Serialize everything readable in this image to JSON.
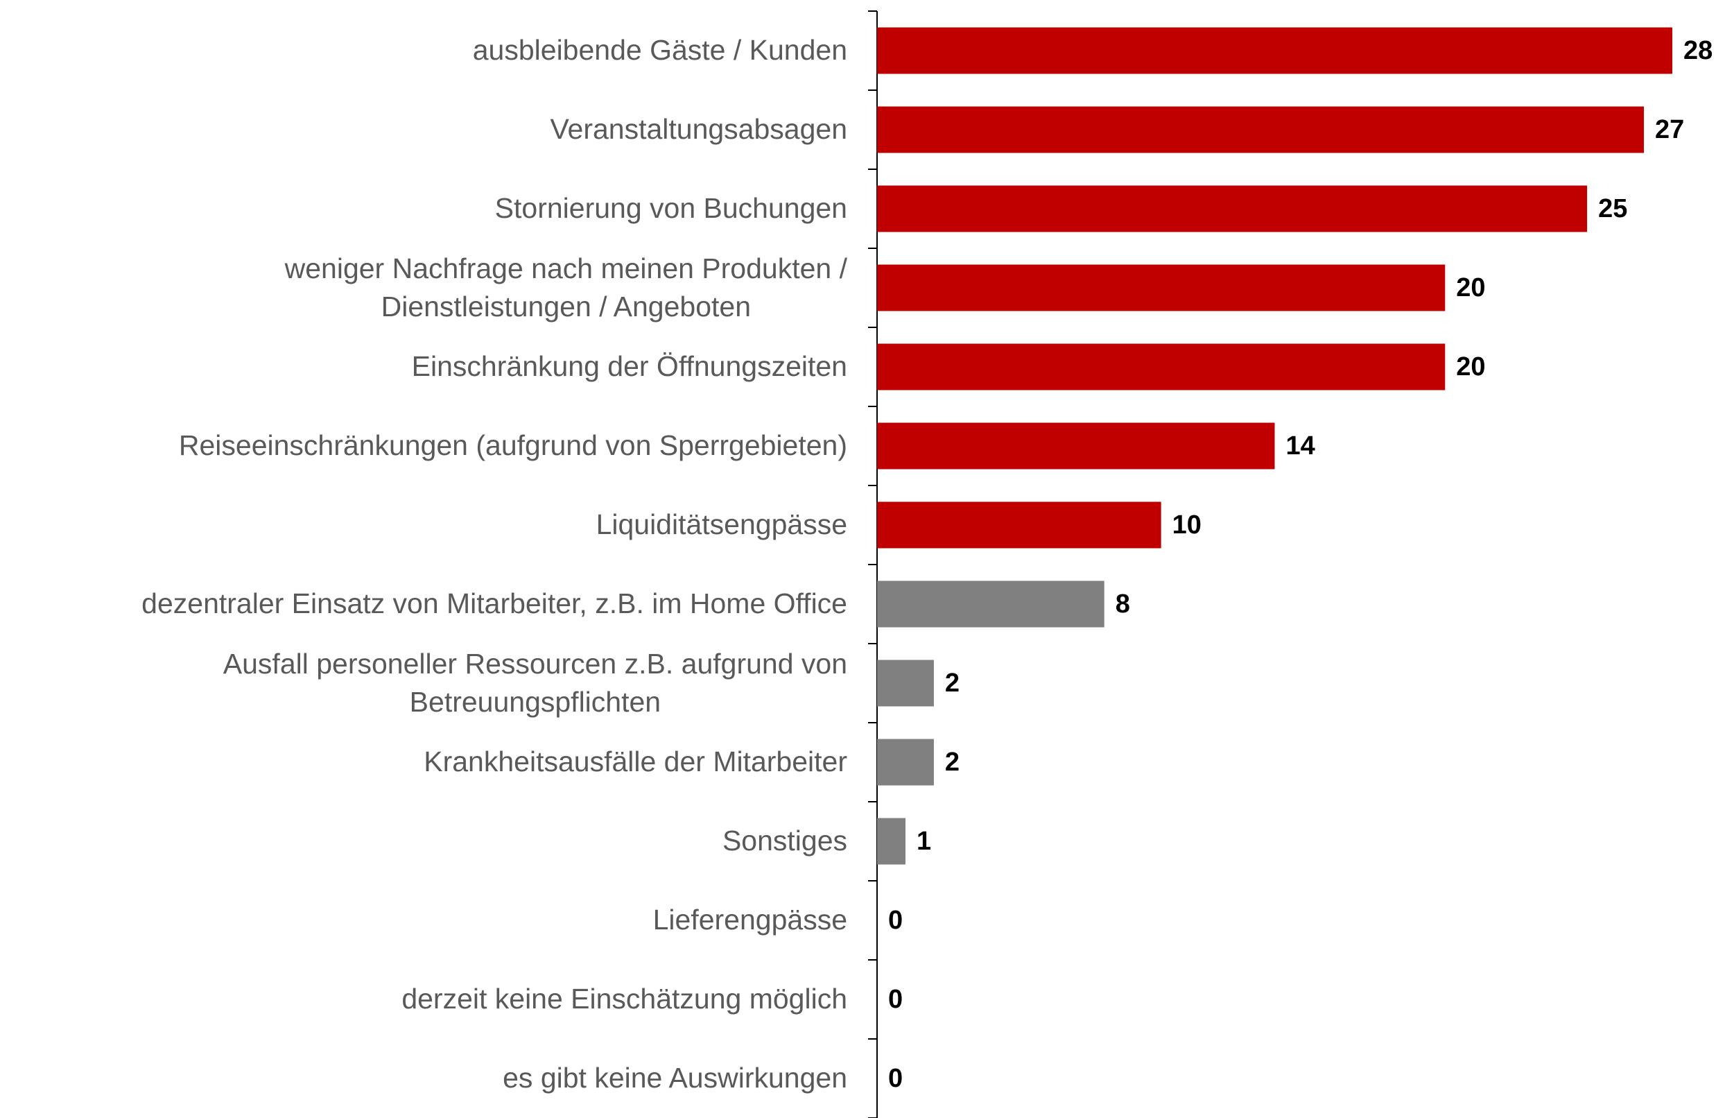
{
  "chart_data": {
    "type": "barh",
    "categories": [
      "ausbleibende Gäste / Kunden",
      "Veranstaltungsabsagen",
      "Stornierung von Buchungen",
      "weniger Nachfrage nach meinen Produkten /\nDienstleistungen / Angeboten",
      "Einschränkung der Öffnungszeiten",
      "Reiseeinschränkungen (aufgrund von Sperrgebieten)",
      "Liquiditätsengpässe",
      "dezentraler Einsatz von Mitarbeiter, z.B. im Home Office",
      "Ausfall personeller Ressourcen z.B. aufgrund von\nBetreuungspflichten",
      "Krankheitsausfälle der Mitarbeiter",
      "Sonstiges",
      "Lieferengpässe",
      "derzeit keine Einschätzung möglich",
      "es gibt keine Auswirkungen"
    ],
    "values": [
      28,
      27,
      25,
      20,
      20,
      14,
      10,
      8,
      2,
      2,
      1,
      0,
      0,
      0
    ],
    "colors": [
      "#c00000",
      "#c00000",
      "#c00000",
      "#c00000",
      "#c00000",
      "#c00000",
      "#c00000",
      "#808080",
      "#808080",
      "#808080",
      "#808080",
      "#808080",
      "#808080",
      "#808080"
    ],
    "xlim": [
      0,
      28
    ]
  }
}
